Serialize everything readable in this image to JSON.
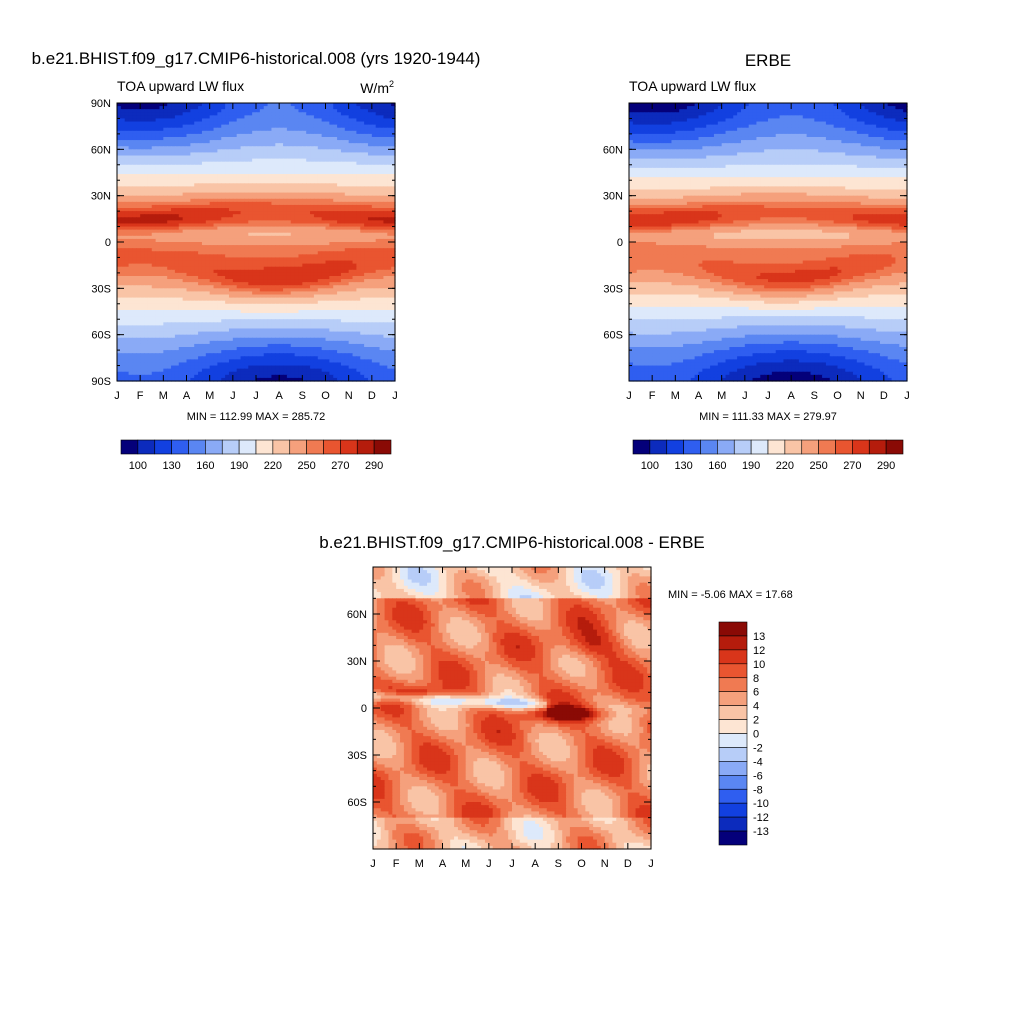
{
  "chart_data": [
    {
      "type": "heatmap",
      "title": "b.e21.BHIST.f09_g17.CMIP6-historical.008 (yrs 1920-1944)",
      "subtitle_left": "TOA upward LW flux",
      "units_base": "W/m",
      "units_exp": "2",
      "x_tick_labels": [
        "J",
        "F",
        "M",
        "A",
        "M",
        "J",
        "J",
        "A",
        "S",
        "O",
        "N",
        "D",
        "J"
      ],
      "y_tick_labels": [
        "90N",
        "60N",
        "30N",
        "0",
        "30S",
        "60S",
        "90S"
      ],
      "y_tick_values": [
        90,
        60,
        30,
        0,
        -30,
        -60,
        -90
      ],
      "ylim": [
        -90,
        90
      ],
      "stats": "MIN = 112.99 MAX = 285.72",
      "colorbar_orientation": "horizontal",
      "colorbar_labels": [
        "100",
        "130",
        "160",
        "190",
        "220",
        "250",
        "270",
        "290"
      ]
    },
    {
      "type": "heatmap",
      "title": "ERBE",
      "subtitle_left": "TOA upward LW flux",
      "x_tick_labels": [
        "J",
        "F",
        "M",
        "A",
        "M",
        "J",
        "J",
        "A",
        "S",
        "O",
        "N",
        "D",
        "J"
      ],
      "y_tick_labels": [
        "60N",
        "30N",
        "0",
        "30S",
        "60S"
      ],
      "y_tick_values": [
        60,
        30,
        0,
        -30,
        -60
      ],
      "ylim": [
        -90,
        90
      ],
      "stats": "MIN = 111.33 MAX = 279.97",
      "colorbar_orientation": "horizontal",
      "colorbar_labels": [
        "100",
        "130",
        "160",
        "190",
        "220",
        "250",
        "270",
        "290"
      ]
    },
    {
      "type": "heatmap",
      "title": "b.e21.BHIST.f09_g17.CMIP6-historical.008 - ERBE",
      "x_tick_labels": [
        "J",
        "F",
        "M",
        "A",
        "M",
        "J",
        "J",
        "A",
        "S",
        "O",
        "N",
        "D",
        "J"
      ],
      "y_tick_labels": [
        "60N",
        "30N",
        "0",
        "30S",
        "60S"
      ],
      "y_tick_values": [
        60,
        30,
        0,
        -30,
        -60
      ],
      "ylim": [
        -90,
        90
      ],
      "stats": "MIN =  -5.06 MAX =  17.68",
      "colorbar_orientation": "vertical",
      "colorbar_labels": [
        "13",
        "12",
        "10",
        "8",
        "6",
        "4",
        "2",
        "0",
        "-2",
        "-4",
        "-6",
        "-8",
        "-10",
        "-12",
        "-13"
      ]
    }
  ],
  "colors": {
    "absolute_scale": [
      "#04007a",
      "#0c2bbd",
      "#1240e0",
      "#2f5ef0",
      "#5a86f2",
      "#8aaaf6",
      "#b7cdf8",
      "#dde9fb",
      "#fde5d3",
      "#f9c4a6",
      "#f5a07c",
      "#f07a52",
      "#e95530",
      "#d9351a",
      "#b51c0c",
      "#8a0a05"
    ],
    "difference_scale": [
      "#8a0a05",
      "#b51c0c",
      "#d9351a",
      "#e95530",
      "#f07a52",
      "#f5a07c",
      "#f9c4a6",
      "#fde5d3",
      "#dde9fb",
      "#b7cdf8",
      "#8aaaf6",
      "#5a86f2",
      "#2f5ef0",
      "#1240e0",
      "#0c2bbd",
      "#04007a"
    ]
  }
}
